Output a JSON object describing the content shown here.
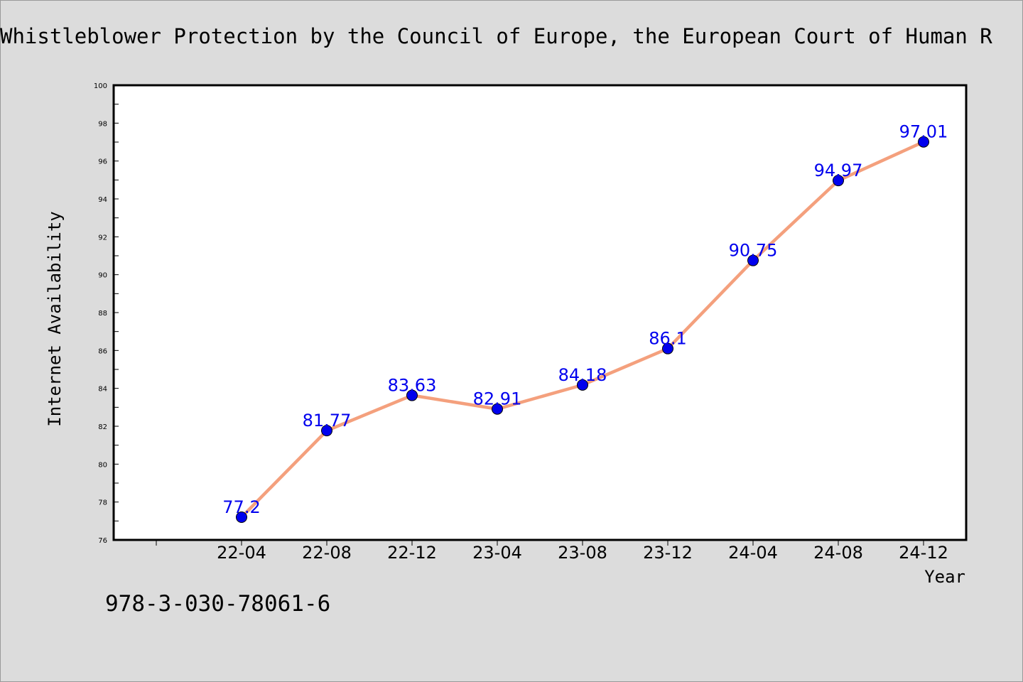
{
  "chart_data": {
    "type": "line",
    "title": "Whistleblower Protection by the Council of Europe, the European Court of Human R",
    "xlabel": "Year",
    "ylabel": "Internet Availability",
    "categories": [
      "22-04",
      "22-08",
      "22-12",
      "23-04",
      "23-08",
      "23-12",
      "24-04",
      "24-08",
      "24-12"
    ],
    "values": [
      77.2,
      81.77,
      83.63,
      82.91,
      84.18,
      86.1,
      90.75,
      94.97,
      97.01
    ],
    "ylim": [
      76,
      100
    ],
    "yticks": [
      "76",
      "78",
      "80",
      "82",
      "84",
      "86",
      "88",
      "90",
      "92",
      "94",
      "96",
      "98",
      "100"
    ],
    "grid": false,
    "legend": "none",
    "line_color": "#f4a07d",
    "marker_color": "#0000ee",
    "label_color": "#0000ee"
  },
  "footer": {
    "isbn": "978-3-030-78061-6"
  }
}
